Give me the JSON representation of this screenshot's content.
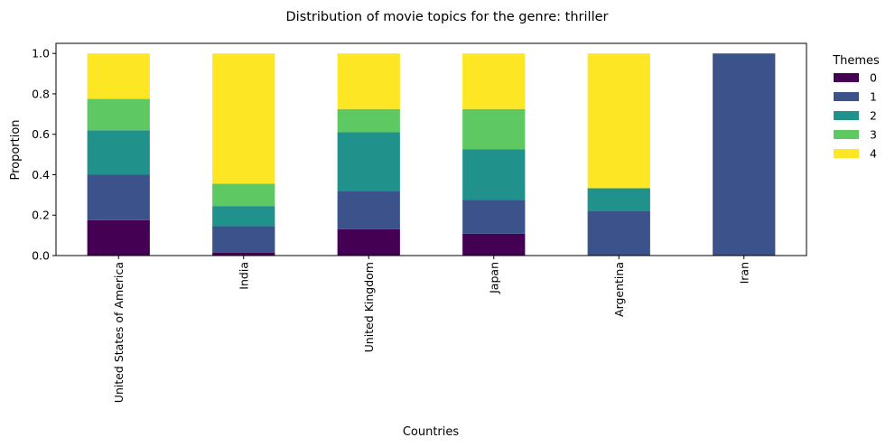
{
  "chart_data": {
    "type": "bar",
    "stacked": true,
    "title": "Distribution of movie topics for the genre: thriller",
    "xlabel": "Countries",
    "ylabel": "Proportion",
    "ylim": [
      0,
      1.05
    ],
    "yticks": [
      "0.0",
      "0.2",
      "0.4",
      "0.6",
      "0.8",
      "1.0"
    ],
    "categories": [
      "United States of America",
      "India",
      "United Kingdom",
      "Japan",
      "Argentina",
      "Iran"
    ],
    "legend": {
      "title": "Themes",
      "placement": "outside-right"
    },
    "series": [
      {
        "name": "0",
        "color": "#440154",
        "values": [
          0.175,
          0.015,
          0.13,
          0.108,
          0.0,
          0.0
        ]
      },
      {
        "name": "1",
        "color": "#3b528b",
        "values": [
          0.225,
          0.13,
          0.19,
          0.167,
          0.222,
          1.0
        ]
      },
      {
        "name": "2",
        "color": "#21918c",
        "values": [
          0.22,
          0.1,
          0.29,
          0.25,
          0.111,
          0.0
        ]
      },
      {
        "name": "3",
        "color": "#5ec962",
        "values": [
          0.155,
          0.11,
          0.115,
          0.2,
          0.0,
          0.0
        ]
      },
      {
        "name": "4",
        "color": "#fde725",
        "values": [
          0.225,
          0.645,
          0.275,
          0.275,
          0.667,
          0.0
        ]
      }
    ]
  }
}
